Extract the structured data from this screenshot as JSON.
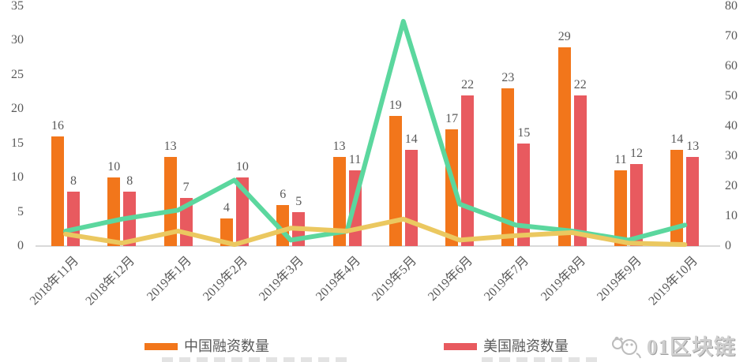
{
  "chart_data": {
    "type": "combo",
    "categories": [
      "2018年11月",
      "2018年12月",
      "2019年1月",
      "2019年2月",
      "2019年3月",
      "2019年4月",
      "2019年5月",
      "2019年6月",
      "2019年7月",
      "2019年8月",
      "2019年9月",
      "2019年10月"
    ],
    "series": [
      {
        "name": "中国融资数量",
        "type": "bar",
        "axis": "left",
        "color": "#F2761B",
        "values": [
          16,
          10,
          13,
          4,
          6,
          13,
          19,
          17,
          23,
          29,
          11,
          14
        ]
      },
      {
        "name": "美国融资数量",
        "type": "bar",
        "axis": "left",
        "color": "#E85A5F",
        "values": [
          8,
          8,
          7,
          10,
          5,
          11,
          14,
          22,
          15,
          22,
          12,
          13
        ]
      },
      {
        "name": "green-line (legend cropped)",
        "type": "line",
        "axis": "right",
        "color": "#5BD79E",
        "values": [
          5,
          9,
          12,
          22,
          2,
          5,
          75,
          14,
          7,
          5,
          2,
          7
        ]
      },
      {
        "name": "yellow-line (legend cropped)",
        "type": "line",
        "axis": "right",
        "color": "#EBC860",
        "values": [
          4,
          1,
          5,
          0.5,
          6,
          5,
          9,
          2,
          3.5,
          4.5,
          1,
          0.5
        ]
      }
    ],
    "left_axis": {
      "ticks": [
        0,
        5,
        10,
        15,
        20,
        25,
        30,
        35
      ],
      "range": [
        0,
        35
      ]
    },
    "right_axis": {
      "ticks": [
        0,
        10,
        20,
        30,
        40,
        50,
        60,
        70,
        80
      ],
      "range": [
        0,
        80
      ]
    },
    "grid": false,
    "legend_position": "bottom",
    "bar_labels_shown": true
  },
  "legend": {
    "china": "中国融资数量",
    "usa": "美国融资数量"
  },
  "watermark": {
    "text": "01区块链"
  }
}
